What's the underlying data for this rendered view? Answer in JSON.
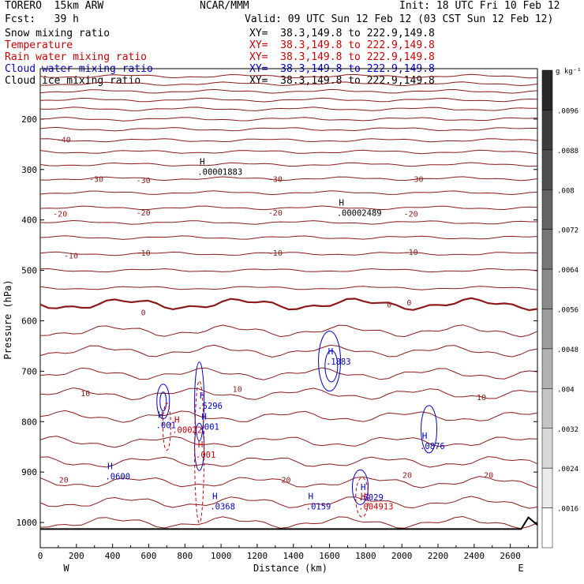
{
  "header": {
    "model": "TORERO  15km ARW",
    "center": "NCAR/MMM",
    "init": "Init: 18 UTC Fri 10 Feb 12",
    "fcst": "Fcst:   39 h",
    "valid": "Valid: 09 UTC Sun 12 Feb 12 (03 CST Sun 12 Feb 12)"
  },
  "fields": [
    {
      "name": "Snow mixing ratio",
      "xy": "XY=  38.3,149.8 to 222.9,149.8",
      "color": "#000000",
      "xy_color": "#000000"
    },
    {
      "name": "Temperature",
      "xy": "XY=  38.3,149.8 to 222.9,149.8",
      "color": "#cc0000",
      "xy_color": "#cc0000"
    },
    {
      "name": "Rain water mixing ratio",
      "xy": "XY=  38.3,149.8 to 222.9,149.8",
      "color": "#cc0000",
      "xy_color": "#cc0000"
    },
    {
      "name": "Cloud water mixing ratio",
      "xy": "XY=  38.3,149.8 to 222.9,149.8",
      "color": "#0000cc",
      "xy_color": "#0000cc"
    },
    {
      "name": "Cloud ice mixing ratio",
      "xy": "XY=  38.3,149.8 to 222.9,149.8",
      "color": "#000000",
      "xy_color": "#000000"
    }
  ],
  "chart_data": {
    "type": "contour cross-section",
    "xlabel": "Distance (km)",
    "ylabel": "Pressure (hPa)",
    "xlim": [
      0,
      2750
    ],
    "ylim": [
      1050,
      100
    ],
    "x_ticks": [
      0,
      200,
      400,
      600,
      800,
      1000,
      1200,
      1400,
      1600,
      1800,
      2000,
      2200,
      2400,
      2600
    ],
    "y_ticks": [
      200,
      300,
      400,
      500,
      600,
      700,
      800,
      900,
      1000
    ],
    "x_ends": {
      "left": "W",
      "right": "E"
    },
    "temperature_labels": [
      {
        "text": "-40",
        "x": 130,
        "p": 240
      },
      {
        "text": "-30",
        "x": 310,
        "p": 318
      },
      {
        "text": "-30",
        "x": 570,
        "p": 321
      },
      {
        "text": "-30",
        "x": 1300,
        "p": 318
      },
      {
        "text": "-30",
        "x": 2080,
        "p": 318
      },
      {
        "text": "-20",
        "x": 110,
        "p": 387
      },
      {
        "text": "-20",
        "x": 570,
        "p": 385
      },
      {
        "text": "-20",
        "x": 1300,
        "p": 385
      },
      {
        "text": "-20",
        "x": 2050,
        "p": 387
      },
      {
        "text": "-10",
        "x": 170,
        "p": 470
      },
      {
        "text": "-10",
        "x": 570,
        "p": 465
      },
      {
        "text": "-10",
        "x": 1300,
        "p": 465
      },
      {
        "text": "-10",
        "x": 2050,
        "p": 463
      },
      {
        "text": "0",
        "x": 570,
        "p": 583
      },
      {
        "text": "0",
        "x": 1930,
        "p": 567
      },
      {
        "text": "0",
        "x": 2040,
        "p": 563
      },
      {
        "text": "10",
        "x": 250,
        "p": 743
      },
      {
        "text": "10",
        "x": 1090,
        "p": 735
      },
      {
        "text": "10",
        "x": 2440,
        "p": 751
      },
      {
        "text": "20",
        "x": 130,
        "p": 915
      },
      {
        "text": "20",
        "x": 1360,
        "p": 915
      },
      {
        "text": "20",
        "x": 2030,
        "p": 905
      },
      {
        "text": "20",
        "x": 2480,
        "p": 905
      }
    ],
    "maxima": [
      {
        "value": ".00001883",
        "x": 870,
        "p": 304,
        "color": "#000000"
      },
      {
        "value": ".00002489",
        "x": 1640,
        "p": 386,
        "color": "#000000"
      },
      {
        "value": ".1883",
        "x": 1580,
        "p": 681,
        "color": "#0000cc"
      },
      {
        "value": ".5296",
        "x": 870,
        "p": 768,
        "color": "#0000cc"
      },
      {
        "value": ".001",
        "x": 640,
        "p": 807,
        "color": "#0000cc"
      },
      {
        "value": ".00022",
        "x": 730,
        "p": 816,
        "color": "#cc0000"
      },
      {
        "value": ".001",
        "x": 880,
        "p": 810,
        "color": "#0000cc"
      },
      {
        "value": ".001",
        "x": 860,
        "p": 865,
        "color": "#cc0000"
      },
      {
        "value": ".0876",
        "x": 2100,
        "p": 848,
        "color": "#0000cc"
      },
      {
        "value": ".0600",
        "x": 360,
        "p": 908,
        "color": "#0000cc"
      },
      {
        "value": ".0368",
        "x": 940,
        "p": 968,
        "color": "#0000cc"
      },
      {
        "value": ".0159",
        "x": 1470,
        "p": 968,
        "color": "#0000cc"
      },
      {
        "value": ".6029",
        "x": 1760,
        "p": 950,
        "color": "#0000cc"
      },
      {
        "value": ".004913",
        "x": 1760,
        "p": 968,
        "color": "#cc0000"
      }
    ],
    "colorbar": {
      "unit": "g kg⁻¹",
      "labels": [
        ".0096",
        ".0088",
        ".008",
        ".0072",
        ".0064",
        ".0056",
        ".0048",
        ".004",
        ".0032",
        ".0024",
        ".0016"
      ]
    }
  }
}
